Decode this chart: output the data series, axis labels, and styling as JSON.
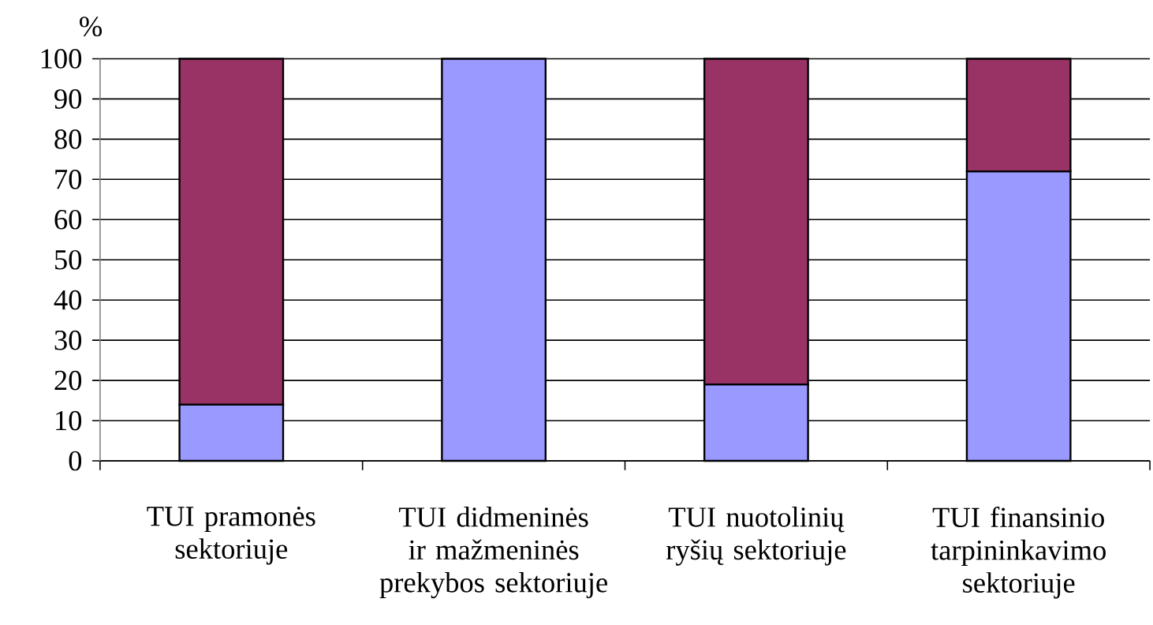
{
  "chart_data": {
    "type": "bar",
    "stacked": true,
    "ylabel": "%",
    "categories": [
      "TUI pramonės sektoriuje",
      "TUI didmeninės ir mažmeninės prekybos sektoriuje",
      "TUI nuotolinių ryšių sektoriuje",
      "TUI finansinio tarpininkavimo sektoriuje"
    ],
    "series": [
      {
        "color": "#9999ff",
        "values": [
          14,
          100,
          19,
          72
        ]
      },
      {
        "color": "#993366",
        "values": [
          86,
          null,
          81,
          28
        ]
      }
    ],
    "ylim": [
      0,
      100
    ],
    "yticks": [
      0,
      10,
      20,
      30,
      40,
      50,
      60,
      70,
      80,
      90,
      100
    ],
    "grid": "y"
  }
}
